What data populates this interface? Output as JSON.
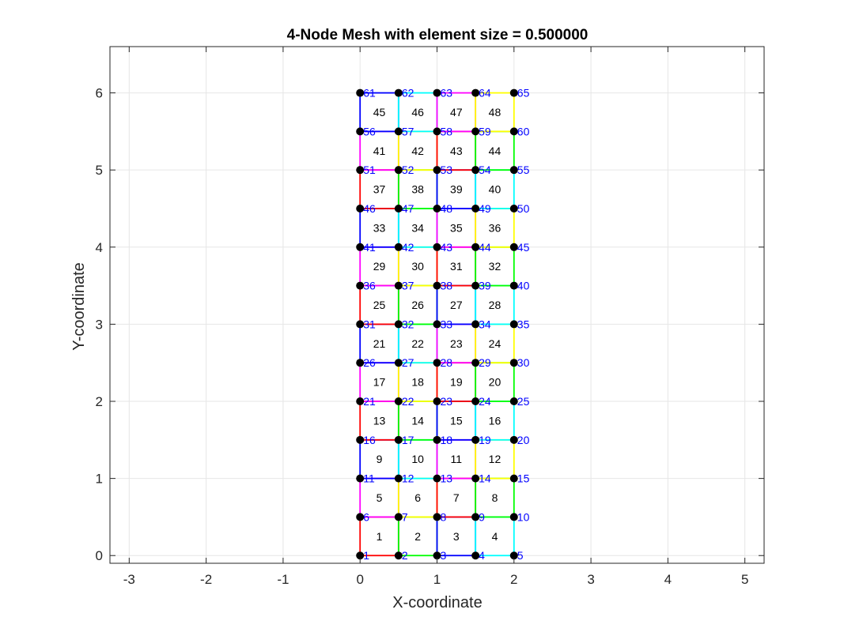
{
  "chart_data": {
    "type": "mesh",
    "title": "4-Node Mesh with element size = 0.500000",
    "xlabel": "X-coordinate",
    "ylabel": "Y-coordinate",
    "xlim": [
      -3.25,
      5.25
    ],
    "ylim": [
      -0.1,
      6.6
    ],
    "xticks": [
      "-3",
      "-2",
      "-1",
      "0",
      "1",
      "2",
      "3",
      "4",
      "5"
    ],
    "yticks": [
      "0",
      "1",
      "2",
      "3",
      "4",
      "5",
      "6"
    ],
    "grid": true,
    "element_size": 0.5,
    "nodes_per_row": 5,
    "element_rows": 12,
    "element_cols": 4,
    "node_color": "#000000",
    "node_label_color": "#0000ff",
    "element_edge_colors": [
      "#ff0000",
      "#00ff00",
      "#0000ff",
      "#00ffff",
      "#ff00ff",
      "#ffff00"
    ],
    "node_labels": [
      "1",
      "2",
      "3",
      "4",
      "5",
      "6",
      "7",
      "8",
      "9",
      "10",
      "11",
      "12",
      "13",
      "14",
      "15",
      "16",
      "17",
      "18",
      "19",
      "20",
      "21",
      "22",
      "23",
      "24",
      "25",
      "26",
      "27",
      "28",
      "29",
      "30",
      "31",
      "32",
      "33",
      "34",
      "35",
      "36",
      "37",
      "38",
      "39",
      "40",
      "41",
      "42",
      "43",
      "44",
      "45",
      "46",
      "47",
      "48",
      "49",
      "50",
      "51",
      "52",
      "53",
      "54",
      "55",
      "56",
      "57",
      "58",
      "59",
      "60",
      "61",
      "62",
      "63",
      "64",
      "65"
    ],
    "element_labels": [
      "1",
      "2",
      "3",
      "4",
      "5",
      "6",
      "7",
      "8",
      "9",
      "10",
      "11",
      "12",
      "13",
      "14",
      "15",
      "16",
      "17",
      "18",
      "19",
      "20",
      "21",
      "22",
      "23",
      "24",
      "25",
      "26",
      "27",
      "28",
      "29",
      "30",
      "31",
      "32",
      "33",
      "34",
      "35",
      "36",
      "37",
      "38",
      "39",
      "40",
      "41",
      "42",
      "43",
      "44",
      "45",
      "46",
      "47",
      "48"
    ]
  }
}
